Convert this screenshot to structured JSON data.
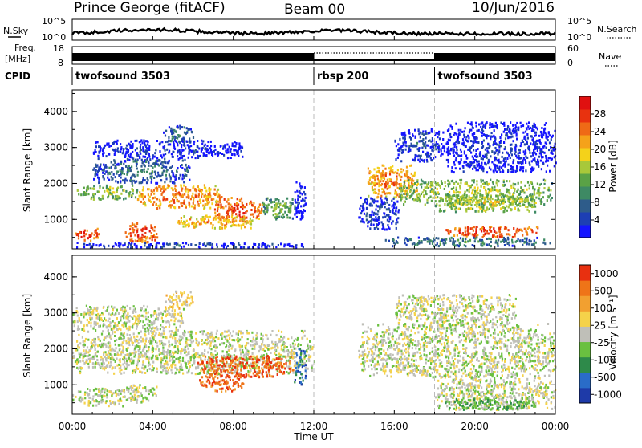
{
  "header": {
    "station": "Prince George (fitACF)",
    "beam": "Beam 00",
    "date": "10/Jun/2016"
  },
  "summary_panels": {
    "nsky_label": "N.Sky",
    "nsky_ticks": [
      "10^5",
      "10^0"
    ],
    "nsearch_label": "N.Search",
    "nsearch_ticks": [
      "10^5",
      "10^0"
    ],
    "freq_label_line1": "Freq.",
    "freq_label_line2": "[MHz]",
    "freq_ticks": [
      "18",
      "8"
    ],
    "nave_label": "Nave",
    "nave_ticks": [
      "60",
      "0"
    ],
    "cpid_label": "CPID",
    "cpid_segments": [
      {
        "label": "twofsound 3503",
        "start_hour": 0,
        "end_hour": 12
      },
      {
        "label": "rbsp 200",
        "start_hour": 12,
        "end_hour": 18
      },
      {
        "label": "twofsound 3503",
        "start_hour": 18,
        "end_hour": 24
      }
    ]
  },
  "chart_data": [
    {
      "type": "heatmap",
      "name": "power",
      "title": "",
      "xlabel": "Time UT",
      "ylabel": "Slant Range [km]",
      "x_ticks": [
        "00:00",
        "04:00",
        "08:00",
        "12:00",
        "16:00",
        "20:00",
        "00:00"
      ],
      "xlim_hours": [
        0,
        24
      ],
      "y_ticks": [
        "1000",
        "2000",
        "3000",
        "4000"
      ],
      "ylim_km": [
        180,
        4600
      ],
      "colorbar_label": "Power [dB]",
      "colorbar_ticks": [
        "4",
        "8",
        "12",
        "16",
        "20",
        "24",
        "28"
      ],
      "colorbar_colors": [
        "#1414ff",
        "#1d3fb4",
        "#2e5c8a",
        "#3e8a64",
        "#5aa246",
        "#a8c83a",
        "#f4d21a",
        "#f5a21a",
        "#ef6a16",
        "#e8320f",
        "#e01010"
      ],
      "blobs": [
        {
          "t0": 0.1,
          "t1": 1.3,
          "r0": 400,
          "r1": 750,
          "level": 0.92
        },
        {
          "t0": 2.6,
          "t1": 4.2,
          "r0": 350,
          "r1": 900,
          "level": 0.9
        },
        {
          "t0": 0.2,
          "t1": 3.2,
          "r0": 1550,
          "r1": 1950,
          "level": 0.55
        },
        {
          "t0": 3.2,
          "t1": 7.4,
          "r0": 1300,
          "r1": 1950,
          "level": 0.8
        },
        {
          "t0": 7.0,
          "t1": 9.4,
          "r0": 900,
          "r1": 1600,
          "level": 0.88
        },
        {
          "t0": 5.2,
          "t1": 9.0,
          "r0": 750,
          "r1": 1100,
          "level": 0.75
        },
        {
          "t0": 9.3,
          "t1": 11.2,
          "r0": 1000,
          "r1": 1600,
          "level": 0.45
        },
        {
          "t0": 1.0,
          "t1": 5.8,
          "r0": 2000,
          "r1": 2700,
          "level": 0.3
        },
        {
          "t0": 4.5,
          "t1": 6.0,
          "r0": 3100,
          "r1": 3600,
          "level": 0.3
        },
        {
          "t0": 1.0,
          "t1": 8.5,
          "r0": 2700,
          "r1": 3200,
          "level": 0.15
        },
        {
          "t0": 11.0,
          "t1": 11.6,
          "r0": 1000,
          "r1": 2100,
          "level": 0.12
        },
        {
          "t0": 14.6,
          "t1": 17.2,
          "r0": 1600,
          "r1": 2500,
          "level": 0.78
        },
        {
          "t0": 14.2,
          "t1": 16.2,
          "r0": 700,
          "r1": 1600,
          "level": 0.2
        },
        {
          "t0": 16.2,
          "t1": 23.8,
          "r0": 1400,
          "r1": 2100,
          "level": 0.55
        },
        {
          "t0": 18.0,
          "t1": 23.0,
          "r0": 1200,
          "r1": 1700,
          "level": 0.6
        },
        {
          "t0": 18.5,
          "t1": 23.2,
          "r0": 500,
          "r1": 800,
          "level": 0.92
        },
        {
          "t0": 15.5,
          "t1": 23.8,
          "r0": 250,
          "r1": 500,
          "level": 0.35
        },
        {
          "t0": 16.0,
          "t1": 18.5,
          "r0": 2600,
          "r1": 3500,
          "level": 0.2
        },
        {
          "t0": 18.5,
          "t1": 24.0,
          "r0": 2300,
          "r1": 3700,
          "level": 0.15
        },
        {
          "t0": 0.0,
          "t1": 11.5,
          "r0": 200,
          "r1": 350,
          "level": 0.2
        }
      ]
    },
    {
      "type": "heatmap",
      "name": "velocity",
      "title": "",
      "xlabel": "Time UT",
      "ylabel": "Slant Range [km]",
      "x_ticks": [
        "00:00",
        "04:00",
        "08:00",
        "12:00",
        "16:00",
        "20:00",
        "00:00"
      ],
      "xlim_hours": [
        0,
        24
      ],
      "y_ticks": [
        "1000",
        "2000",
        "3000",
        "4000"
      ],
      "ylim_km": [
        180,
        4600
      ],
      "colorbar_label": "Velocity [m s⁻¹]",
      "colorbar_ticks": [
        "1000",
        "500",
        "100",
        "25",
        "-25",
        "-100",
        "-500",
        "-1000"
      ],
      "colorbar_colors": [
        "#1e3aa8",
        "#2a6cc8",
        "#2e8a4a",
        "#6ac040",
        "#bfbfb8",
        "#f5d24a",
        "#f2a030",
        "#ef7418",
        "#e83010"
      ],
      "blobs": [
        {
          "t0": 0.0,
          "t1": 12.0,
          "r0": 1300,
          "r1": 2500,
          "level": 0.5
        },
        {
          "t0": 0.0,
          "t1": 5.5,
          "r0": 2500,
          "r1": 3200,
          "level": 0.5
        },
        {
          "t0": 0.0,
          "t1": 2.5,
          "r0": 400,
          "r1": 900,
          "level": 0.5
        },
        {
          "t0": 2.5,
          "t1": 4.2,
          "r0": 500,
          "r1": 1000,
          "level": 0.5
        },
        {
          "t0": 6.2,
          "t1": 11.0,
          "r0": 1200,
          "r1": 1800,
          "level": 0.88
        },
        {
          "t0": 6.3,
          "t1": 8.5,
          "r0": 800,
          "r1": 1300,
          "level": 0.86
        },
        {
          "t0": 11.0,
          "t1": 11.6,
          "r0": 1000,
          "r1": 2000,
          "level": 0.2
        },
        {
          "t0": 4.5,
          "t1": 6.0,
          "r0": 3100,
          "r1": 3600,
          "level": 0.6
        },
        {
          "t0": 14.2,
          "t1": 24.0,
          "r0": 1200,
          "r1": 2700,
          "level": 0.5
        },
        {
          "t0": 18.0,
          "t1": 24.0,
          "r0": 300,
          "r1": 1200,
          "level": 0.5
        },
        {
          "t0": 16.0,
          "t1": 22.0,
          "r0": 2700,
          "r1": 3500,
          "level": 0.5
        },
        {
          "t0": 18.5,
          "t1": 23.0,
          "r0": 300,
          "r1": 600,
          "level": 0.35
        }
      ]
    }
  ]
}
